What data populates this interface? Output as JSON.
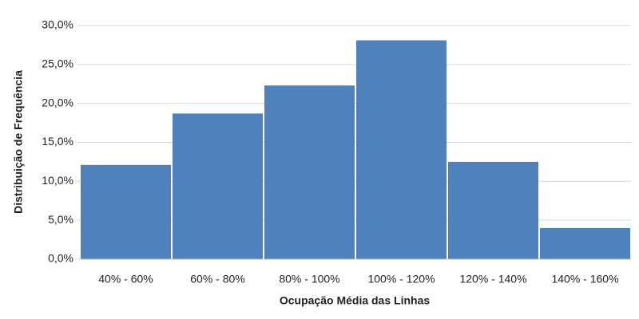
{
  "chart_data": {
    "type": "bar",
    "x_label": "Ocupação Média das Linhas",
    "y_label": "Distribuição de Frequência",
    "categories": [
      "40% - 60%",
      "60% - 80%",
      "80% - 100%",
      "100% - 120%",
      "120% - 140%",
      "140% - 160%"
    ],
    "values": [
      12.1,
      18.7,
      22.3,
      28.1,
      12.5,
      4.0
    ],
    "color": "#4f81bd",
    "ylim": [
      0,
      30
    ],
    "yticks": [
      {
        "value": 0,
        "label": "0,0%"
      },
      {
        "value": 5,
        "label": "5,0%"
      },
      {
        "value": 10,
        "label": "10,0%"
      },
      {
        "value": 15,
        "label": "15,0%"
      },
      {
        "value": 20,
        "label": "20,0%"
      },
      {
        "value": 25,
        "label": "25,0%"
      },
      {
        "value": 30,
        "label": "30,0%"
      }
    ],
    "grid": true
  }
}
